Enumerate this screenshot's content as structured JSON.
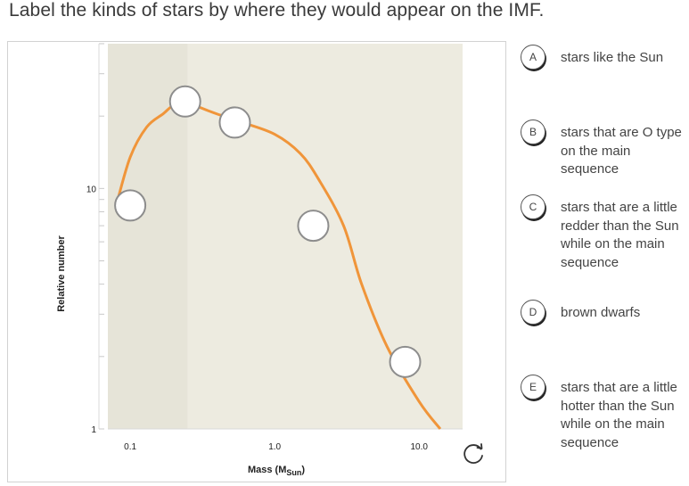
{
  "prompt": "Label the kinds of stars by where they would appear on the IMF.",
  "chart_data": {
    "type": "line",
    "xlabel": "Mass (M",
    "xlabel_sub": "Sun",
    "xlabel_close": ")",
    "ylabel": "Relative number",
    "x_ticks": [
      "0.1",
      "1.0",
      "10.0"
    ],
    "y_ticks": [
      "10",
      "1"
    ],
    "x_scale": "log",
    "y_scale": "log",
    "xlim": [
      0.07,
      20
    ],
    "ylim": [
      1,
      40
    ],
    "series": [
      {
        "x": [
          0.08,
          0.1,
          0.13,
          0.17,
          0.2,
          0.25,
          0.3,
          0.4,
          0.6,
          1.0,
          1.5,
          2.0,
          3.0,
          4.0,
          6.0,
          10.0,
          14.0
        ],
        "y": [
          8.5,
          13.5,
          18.0,
          20.5,
          22.2,
          22.9,
          21.8,
          20.4,
          18.8,
          16.8,
          14.0,
          11.0,
          7.0,
          4.0,
          2.2,
          1.3,
          1.0
        ]
      }
    ],
    "colors": {
      "curve": "#f0953a",
      "low_band": "#e6e4d8",
      "high_band": "#edebe0",
      "grid": "#c9c9c9"
    },
    "drop_targets": [
      {
        "x": 0.1,
        "y": 8.5
      },
      {
        "x": 0.24,
        "y": 23.0
      },
      {
        "x": 0.53,
        "y": 18.8
      },
      {
        "x": 1.85,
        "y": 7.0
      },
      {
        "x": 8.0,
        "y": 1.9
      }
    ]
  },
  "answers": [
    {
      "letter": "A",
      "text": "stars like the Sun"
    },
    {
      "letter": "B",
      "text": "stars that are O type on the main sequence"
    },
    {
      "letter": "C",
      "text": "stars that are a little redder than the Sun while on the main sequence"
    },
    {
      "letter": "D",
      "text": "brown dwarfs"
    },
    {
      "letter": "E",
      "text": "stars that are a little hotter than the Sun while on the main sequence"
    }
  ],
  "reset_icon": "reset-icon"
}
